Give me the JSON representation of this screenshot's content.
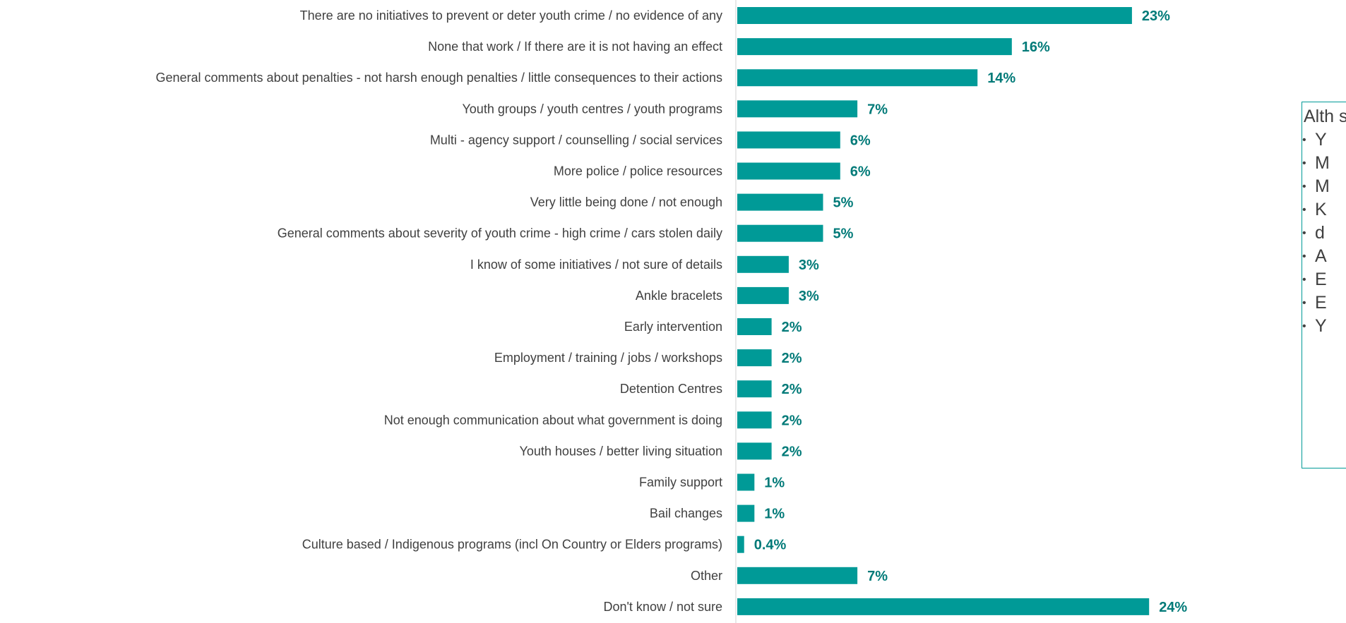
{
  "colors": {
    "bar": "#009a97",
    "label": "#404040",
    "value": "#007a78",
    "axis": "#d0d0d0"
  },
  "chart_data": {
    "type": "bar",
    "orientation": "horizontal",
    "title": "",
    "xlabel": "",
    "ylabel": "",
    "xlim": [
      0,
      24
    ],
    "grid": false,
    "legend": "none",
    "categories": [
      "There are no initiatives to prevent or deter youth crime / no evidence of any",
      "None that work / If there are it is not having an effect",
      "General comments about penalties - not harsh enough penalties / little consequences to their actions",
      "Youth groups / youth centres / youth programs",
      "Multi - agency support / counselling / social services",
      "More police / police resources",
      "Very little being done / not enough",
      "General comments about severity of youth crime - high crime / cars stolen daily",
      "I know of some initiatives / not sure of details",
      "Ankle bracelets",
      "Early intervention",
      "Employment / training / jobs / workshops",
      "Detention Centres",
      "Not enough communication about what government is doing",
      "Youth houses / better living situation",
      "Family support",
      "Bail changes",
      "Culture based / Indigenous programs (incl On Country or Elders programs)",
      "Other",
      "Don't know / not sure"
    ],
    "values": [
      23,
      16,
      14,
      7,
      6,
      6,
      5,
      5,
      3,
      3,
      2,
      2,
      2,
      2,
      2,
      1,
      1,
      0.4,
      7,
      24
    ],
    "value_labels": [
      "23%",
      "16%",
      "14%",
      "7%",
      "6%",
      "6%",
      "5%",
      "5%",
      "3%",
      "3%",
      "2%",
      "2%",
      "2%",
      "2%",
      "2%",
      "1%",
      "1%",
      "0.4%",
      "7%",
      "24%"
    ]
  },
  "callout": {
    "intro": "Alth som follo and",
    "items": [
      "Y",
      "M",
      "M",
      "K",
      "d",
      "A",
      "E",
      "E",
      "Y"
    ]
  }
}
